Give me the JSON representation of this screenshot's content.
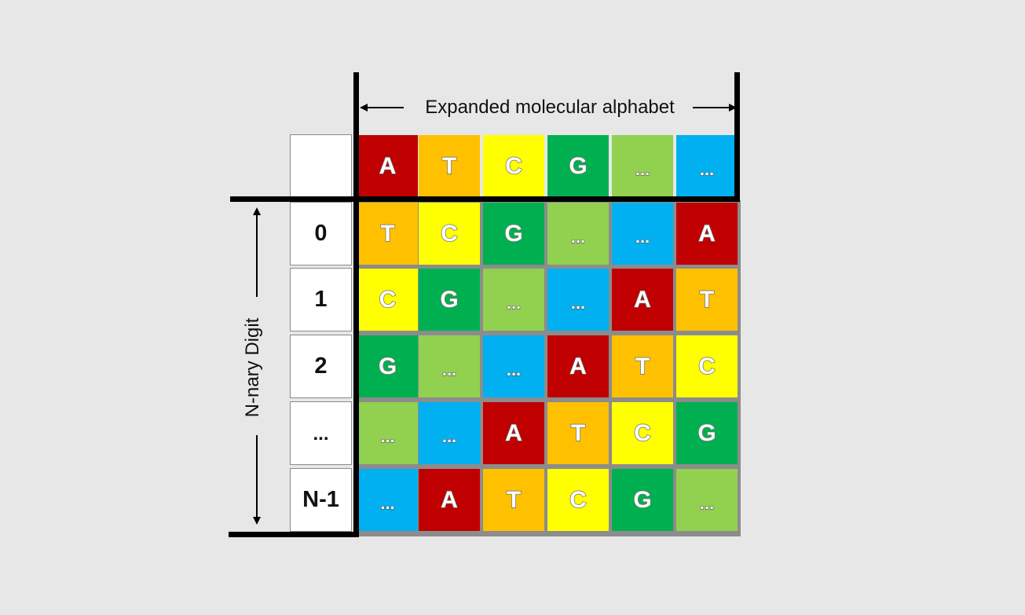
{
  "header": {
    "label": "Expanded molecular alphabet",
    "symbols": [
      "A",
      "T",
      "C",
      "G",
      "...",
      "..."
    ],
    "colors": [
      "#c00000",
      "#ffc000",
      "#ffff00",
      "#00b050",
      "#92d050",
      "#00b0f0"
    ]
  },
  "axis": {
    "label": "N-nary Digit"
  },
  "rows": [
    {
      "digit": "0",
      "cells": [
        "T",
        "C",
        "G",
        "...",
        "...",
        "A"
      ]
    },
    {
      "digit": "1",
      "cells": [
        "C",
        "G",
        "...",
        "...",
        "A",
        "T"
      ]
    },
    {
      "digit": "2",
      "cells": [
        "G",
        "...",
        "...",
        "A",
        "T",
        "C"
      ]
    },
    {
      "digit": "...",
      "cells": [
        "...",
        "...",
        "A",
        "T",
        "C",
        "G"
      ]
    },
    {
      "digit": "N-1",
      "cells": [
        "...",
        "A",
        "T",
        "C",
        "G",
        "..."
      ]
    }
  ],
  "row_colors": [
    [
      "#ffc000",
      "#ffff00",
      "#00b050",
      "#92d050",
      "#00b0f0",
      "#c00000"
    ],
    [
      "#ffff00",
      "#00b050",
      "#92d050",
      "#00b0f0",
      "#c00000",
      "#ffc000"
    ],
    [
      "#00b050",
      "#92d050",
      "#00b0f0",
      "#c00000",
      "#ffc000",
      "#ffff00"
    ],
    [
      "#92d050",
      "#00b0f0",
      "#c00000",
      "#ffc000",
      "#ffff00",
      "#00b050"
    ],
    [
      "#00b0f0",
      "#c00000",
      "#ffc000",
      "#ffff00",
      "#00b050",
      "#92d050"
    ]
  ]
}
